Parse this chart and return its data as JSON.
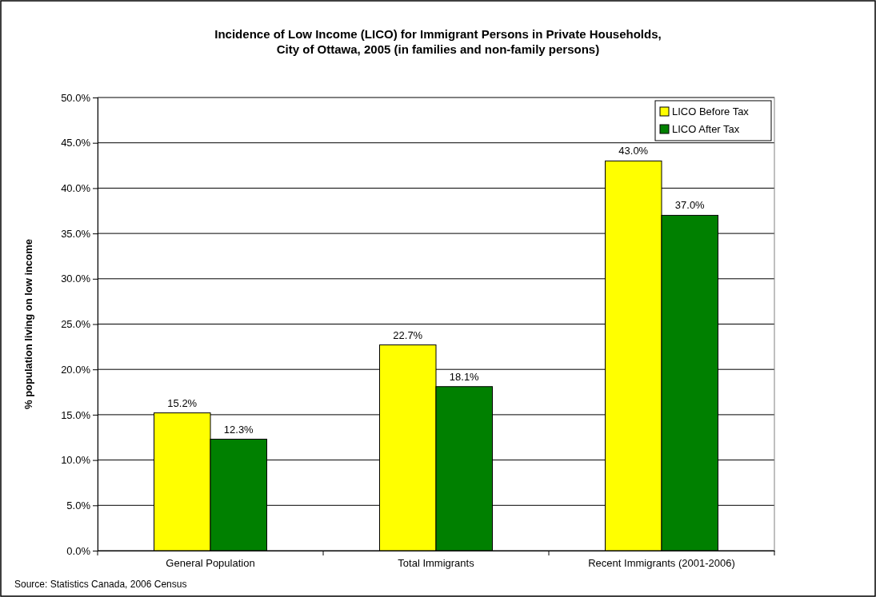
{
  "chart_data": {
    "type": "bar",
    "title": "Incidence of Low Income (LICO) for Immigrant Persons in Private Households,\nCity of Ottawa, 2005 (in families and non-family persons)",
    "ylabel": "% population living on low income",
    "categories": [
      "General Population",
      "Total Immigrants",
      "Recent Immigrants (2001-2006)"
    ],
    "series": [
      {
        "name": "LICO Before Tax",
        "color": "#ffff00",
        "values": [
          15.2,
          22.7,
          43.0
        ],
        "value_labels": [
          "15.2%",
          "22.7%",
          "43.0%"
        ]
      },
      {
        "name": "LICO After Tax",
        "color": "#008000",
        "values": [
          12.3,
          18.1,
          37.0
        ],
        "value_labels": [
          "12.3%",
          "18.1%",
          "37.0%"
        ]
      }
    ],
    "ylim": [
      0,
      50
    ],
    "yticks": [
      {
        "value": 0,
        "label": "0.0%"
      },
      {
        "value": 5,
        "label": "5.0%"
      },
      {
        "value": 10,
        "label": "10.0%"
      },
      {
        "value": 15,
        "label": "15.0%"
      },
      {
        "value": 20,
        "label": "20.0%"
      },
      {
        "value": 25,
        "label": "25.0%"
      },
      {
        "value": 30,
        "label": "30.0%"
      },
      {
        "value": 35,
        "label": "35.0%"
      },
      {
        "value": 40,
        "label": "40.0%"
      },
      {
        "value": 45,
        "label": "45.0%"
      },
      {
        "value": 50,
        "label": "50.0%"
      }
    ],
    "grid": "y",
    "legend": "top right",
    "annotations": [
      "Source: Statistics Canada, 2006 Census"
    ]
  }
}
